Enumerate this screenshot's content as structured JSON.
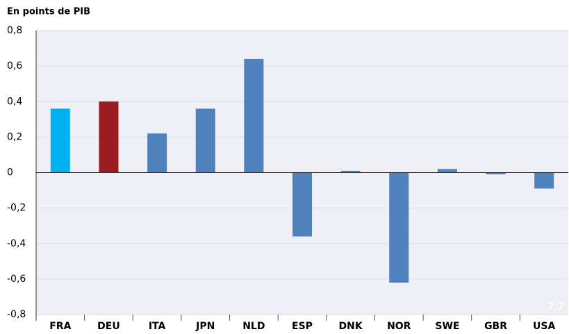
{
  "chart_data": {
    "type": "bar",
    "title": "En points de PIB",
    "watermark": "7.7",
    "categories": [
      "FRA",
      "DEU",
      "ITA",
      "JPN",
      "NLD",
      "ESP",
      "DNK",
      "NOR",
      "SWE",
      "GBR",
      "USA"
    ],
    "values": [
      0.36,
      0.4,
      0.22,
      0.36,
      0.64,
      -0.36,
      0.01,
      -0.62,
      0.02,
      -0.01,
      -0.09
    ],
    "colors": [
      "#00b0f0",
      "#9b1b20",
      "#4f81bd",
      "#4f81bd",
      "#4f81bd",
      "#4f81bd",
      "#4f81bd",
      "#4f81bd",
      "#4f81bd",
      "#4f81bd",
      "#4f81bd"
    ],
    "ylim": [
      -0.8,
      0.8
    ],
    "yticks": [
      {
        "value": -0.8,
        "label": "-0,8"
      },
      {
        "value": -0.6,
        "label": "-0,6"
      },
      {
        "value": -0.4,
        "label": "-0,4"
      },
      {
        "value": -0.2,
        "label": "-0,2"
      },
      0,
      {
        "value": 0.2,
        "label": "0,2"
      },
      {
        "value": 0.4,
        "label": "0,4"
      },
      {
        "value": 0.6,
        "label": "0,6"
      },
      {
        "value": 0.8,
        "label": "0,8"
      }
    ],
    "grid": true
  }
}
